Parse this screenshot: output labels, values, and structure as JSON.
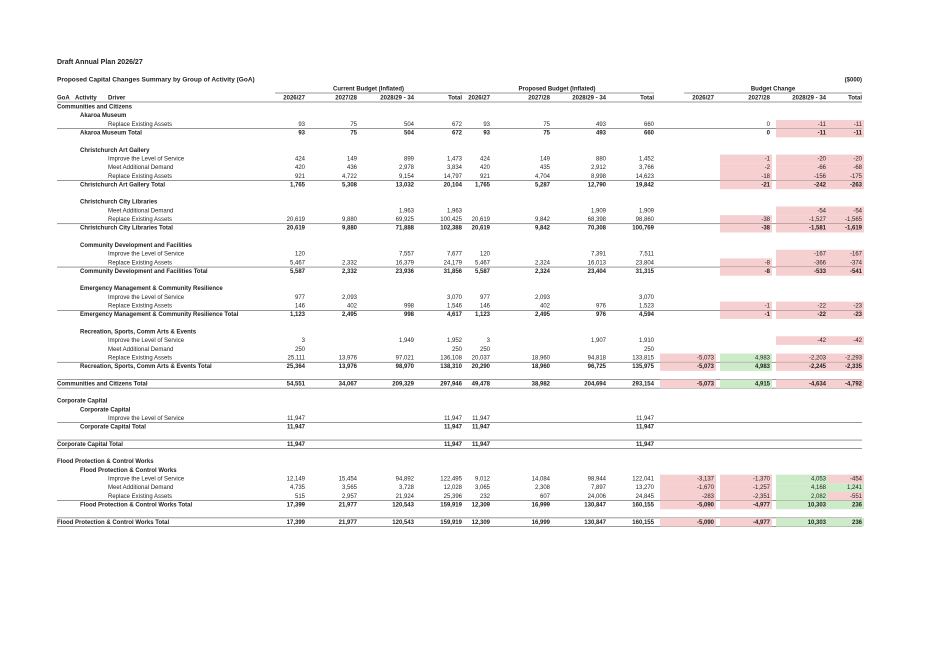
{
  "header": {
    "title": "Draft Annual Plan 2026/27",
    "subtitle": "Proposed Capital Changes Summary by Group of Activity (GoA)",
    "units": "($000)"
  },
  "table": {
    "groups": [
      "Current Budget (Inflated)",
      "Proposed Budget (Inflated)",
      "Budget Change"
    ],
    "columns": [
      "GoA",
      "Activity",
      "Driver",
      "2026/27",
      "2027/28",
      "2028/29 - 34",
      "Total",
      "2026/27",
      "2027/28",
      "2028/29 - 34",
      "Total",
      "2026/27",
      "2027/28",
      "2028/29 - 34",
      "Total"
    ],
    "change_colors": {
      "negative": "#f6cfd0",
      "positive": "#cdebc8"
    },
    "rows": [
      {
        "kind": "group",
        "label": "Communities and Citizens"
      },
      {
        "kind": "activity",
        "label": "Akaroa Museum"
      },
      {
        "kind": "driver",
        "label": "Replace Existing Assets",
        "cells": [
          "93",
          "75",
          "504",
          "672",
          "93",
          "75",
          "493",
          "660",
          null,
          "0",
          "-11",
          "-11"
        ]
      },
      {
        "kind": "activity-total",
        "label": "Akaroa Museum Total",
        "cells": [
          "93",
          "75",
          "504",
          "672",
          "93",
          "75",
          "493",
          "660",
          null,
          "0",
          "-11",
          "-11"
        ]
      },
      {
        "kind": "activity",
        "label": "Christchurch Art Gallery"
      },
      {
        "kind": "driver",
        "label": "Improve the Level of Service",
        "cells": [
          "424",
          "149",
          "899",
          "1,473",
          "424",
          "149",
          "880",
          "1,452",
          null,
          "-1",
          "-20",
          "-20"
        ]
      },
      {
        "kind": "driver",
        "label": "Meet Additional Demand",
        "cells": [
          "420",
          "436",
          "2,978",
          "3,834",
          "420",
          "435",
          "2,912",
          "3,766",
          null,
          "-2",
          "-66",
          "-68"
        ]
      },
      {
        "kind": "driver",
        "label": "Replace Existing Assets",
        "cells": [
          "921",
          "4,722",
          "9,154",
          "14,797",
          "921",
          "4,704",
          "8,998",
          "14,623",
          null,
          "-18",
          "-156",
          "-175"
        ]
      },
      {
        "kind": "activity-total",
        "label": "Christchurch Art Gallery Total",
        "cells": [
          "1,765",
          "5,308",
          "13,032",
          "20,104",
          "1,765",
          "5,287",
          "12,790",
          "19,842",
          null,
          "-21",
          "-242",
          "-263"
        ]
      },
      {
        "kind": "activity",
        "label": "Christchurch City Libraries"
      },
      {
        "kind": "driver",
        "label": "Meet Additional Demand",
        "cells": [
          null,
          null,
          "1,963",
          "1,963",
          null,
          null,
          "1,909",
          "1,909",
          null,
          null,
          "-54",
          "-54"
        ]
      },
      {
        "kind": "driver",
        "label": "Replace Existing Assets",
        "cells": [
          "20,619",
          "9,880",
          "69,925",
          "100,425",
          "20,619",
          "9,842",
          "68,398",
          "98,860",
          null,
          "-38",
          "-1,527",
          "-1,565"
        ]
      },
      {
        "kind": "activity-total",
        "label": "Christchurch City Libraries Total",
        "cells": [
          "20,619",
          "9,880",
          "71,888",
          "102,388",
          "20,619",
          "9,842",
          "70,308",
          "100,769",
          null,
          "-38",
          "-1,581",
          "-1,619"
        ]
      },
      {
        "kind": "activity",
        "label": "Community Development and Facilities"
      },
      {
        "kind": "driver",
        "label": "Improve the Level of Service",
        "cells": [
          "120",
          null,
          "7,557",
          "7,677",
          "120",
          null,
          "7,391",
          "7,511",
          null,
          null,
          "-167",
          "-167"
        ]
      },
      {
        "kind": "driver",
        "label": "Replace Existing Assets",
        "cells": [
          "5,467",
          "2,332",
          "16,379",
          "24,179",
          "5,467",
          "2,324",
          "16,013",
          "23,804",
          null,
          "-8",
          "-366",
          "-374"
        ]
      },
      {
        "kind": "activity-total",
        "label": "Community Development and Facilities Total",
        "cells": [
          "5,587",
          "2,332",
          "23,936",
          "31,856",
          "5,587",
          "2,324",
          "23,404",
          "31,315",
          null,
          "-8",
          "-533",
          "-541"
        ]
      },
      {
        "kind": "activity",
        "label": "Emergency Management & Community Resilience"
      },
      {
        "kind": "driver",
        "label": "Improve the Level of Service",
        "cells": [
          "977",
          "2,093",
          null,
          "3,070",
          "977",
          "2,093",
          null,
          "3,070",
          null,
          null,
          null,
          null
        ]
      },
      {
        "kind": "driver",
        "label": "Replace Existing Assets",
        "cells": [
          "146",
          "402",
          "998",
          "1,546",
          "146",
          "402",
          "976",
          "1,523",
          null,
          "-1",
          "-22",
          "-23"
        ]
      },
      {
        "kind": "activity-total",
        "label": "Emergency Management & Community Resilience Total",
        "cells": [
          "1,123",
          "2,495",
          "998",
          "4,617",
          "1,123",
          "2,495",
          "976",
          "4,594",
          null,
          "-1",
          "-22",
          "-23"
        ]
      },
      {
        "kind": "activity",
        "label": "Recreation, Sports, Comm Arts & Events"
      },
      {
        "kind": "driver",
        "label": "Improve the Level of Service",
        "cells": [
          "3",
          null,
          "1,949",
          "1,952",
          "3",
          null,
          "1,907",
          "1,910",
          null,
          null,
          "-42",
          "-42"
        ]
      },
      {
        "kind": "driver",
        "label": "Meet Additional Demand",
        "cells": [
          "250",
          null,
          null,
          "250",
          "250",
          null,
          null,
          "250",
          null,
          null,
          null,
          null
        ]
      },
      {
        "kind": "driver",
        "label": "Replace Existing Assets",
        "cells": [
          "25,111",
          "13,976",
          "97,021",
          "136,108",
          "20,037",
          "18,960",
          "94,818",
          "133,815",
          "-5,073",
          "4,983",
          "-2,203",
          "-2,293"
        ]
      },
      {
        "kind": "activity-total",
        "label": "Recreation, Sports, Comm Arts & Events Total",
        "cells": [
          "25,364",
          "13,976",
          "98,970",
          "138,310",
          "20,290",
          "18,960",
          "96,725",
          "135,975",
          "-5,073",
          "4,983",
          "-2,245",
          "-2,335"
        ]
      },
      {
        "kind": "group-total",
        "label": "Communities and Citizens Total",
        "cells": [
          "54,551",
          "34,067",
          "209,329",
          "297,946",
          "49,478",
          "38,982",
          "204,694",
          "293,154",
          "-5,073",
          "4,915",
          "-4,634",
          "-4,792"
        ]
      },
      {
        "kind": "group",
        "label": "Corporate Capital"
      },
      {
        "kind": "activity",
        "label": "Corporate Capital"
      },
      {
        "kind": "driver",
        "label": "Improve the Level of Service",
        "cells": [
          "11,947",
          null,
          null,
          "11,947",
          "11,947",
          null,
          null,
          "11,947",
          null,
          null,
          null,
          null
        ]
      },
      {
        "kind": "activity-total",
        "label": "Corporate Capital Total",
        "cells": [
          "11,947",
          null,
          null,
          "11,947",
          "11,947",
          null,
          null,
          "11,947",
          null,
          null,
          null,
          null
        ]
      },
      {
        "kind": "group-total",
        "label": "Corporate Capital Total",
        "cells": [
          "11,947",
          null,
          null,
          "11,947",
          "11,947",
          null,
          null,
          "11,947",
          null,
          null,
          null,
          null
        ]
      },
      {
        "kind": "group",
        "label": "Flood Protection & Control Works"
      },
      {
        "kind": "activity",
        "label": "Flood Protection & Control Works"
      },
      {
        "kind": "driver",
        "label": "Improve the Level of Service",
        "cells": [
          "12,149",
          "15,454",
          "94,892",
          "122,495",
          "9,012",
          "14,084",
          "98,944",
          "122,041",
          "-3,137",
          "-1,370",
          "4,053",
          "-454"
        ]
      },
      {
        "kind": "driver",
        "label": "Meet Additional Demand",
        "cells": [
          "4,735",
          "3,565",
          "3,728",
          "12,028",
          "3,065",
          "2,308",
          "7,897",
          "13,270",
          "-1,670",
          "-1,257",
          "4,168",
          "1,241"
        ]
      },
      {
        "kind": "driver",
        "label": "Replace Existing Assets",
        "cells": [
          "515",
          "2,957",
          "21,924",
          "25,396",
          "232",
          "607",
          "24,006",
          "24,845",
          "-283",
          "-2,351",
          "2,082",
          "-551"
        ]
      },
      {
        "kind": "activity-total",
        "label": "Flood Protection & Control Works Total",
        "cells": [
          "17,399",
          "21,977",
          "120,543",
          "159,919",
          "12,309",
          "16,999",
          "130,847",
          "160,155",
          "-5,090",
          "-4,977",
          "10,303",
          "236"
        ]
      },
      {
        "kind": "group-total",
        "label": "Flood Protection & Control Works Total",
        "cells": [
          "17,399",
          "21,977",
          "120,543",
          "159,919",
          "12,309",
          "16,999",
          "130,847",
          "160,155",
          "-5,090",
          "-4,977",
          "10,303",
          "236"
        ]
      }
    ]
  }
}
